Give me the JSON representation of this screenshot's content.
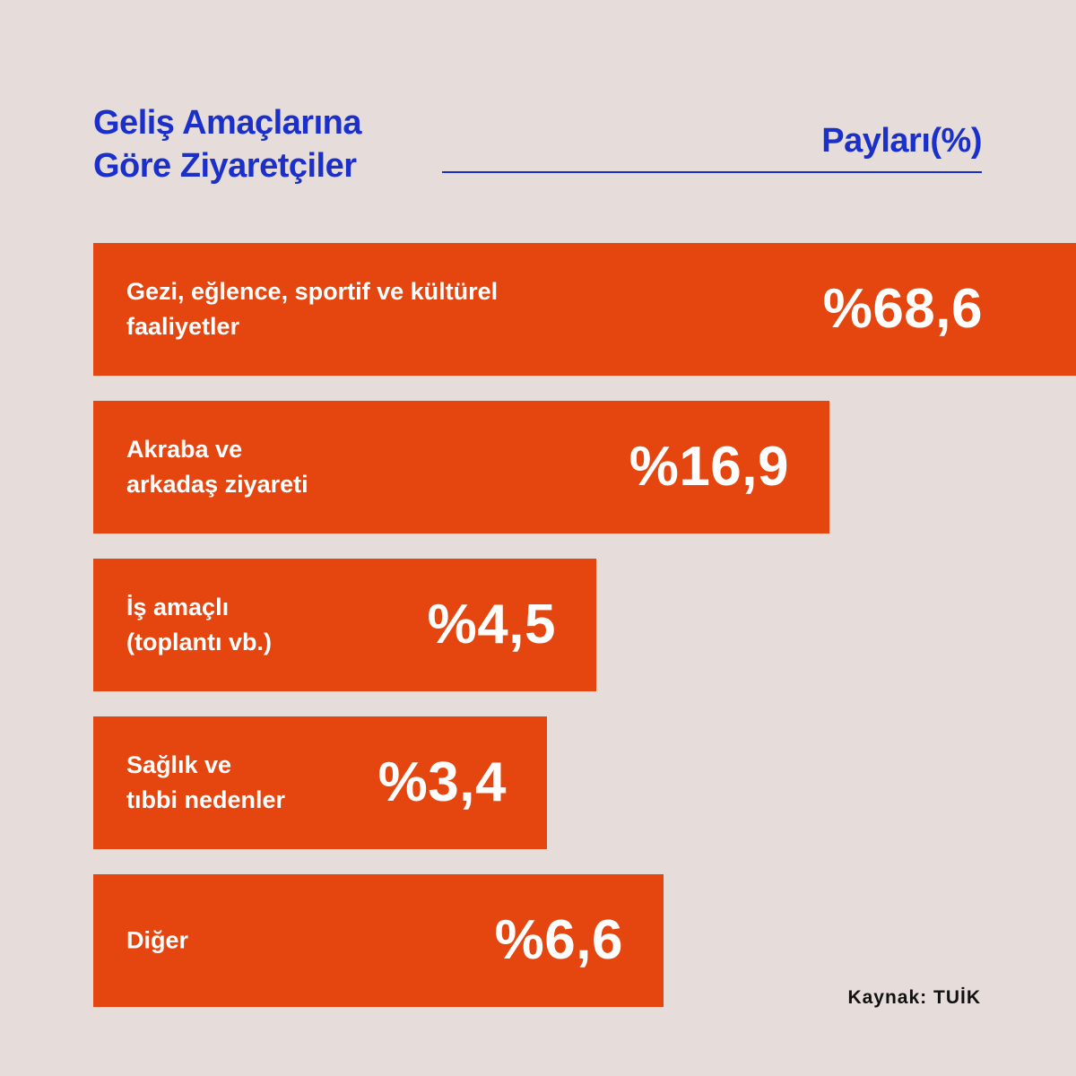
{
  "colors": {
    "background": "#e6dcda",
    "accent_blue": "#1b2fc9",
    "bar": "#e5460f",
    "bar_text": "#ffffff"
  },
  "chart_data": {
    "type": "bar",
    "orientation": "horizontal",
    "title": [
      "Geliş Amaçlarına",
      "Göre Ziyaretçiler"
    ],
    "unit_label": "Payları(%)",
    "categories": [
      [
        "Gezi, eğlence, sportif ve kültürel",
        "faaliyetler"
      ],
      [
        "Akraba ve",
        "arkadaş ziyareti"
      ],
      [
        "İş amaçlı",
        "(toplantı vb.)"
      ],
      [
        "Sağlık ve",
        "tıbbi nedenler"
      ],
      [
        "Diğer"
      ]
    ],
    "values": [
      68.6,
      16.9,
      4.5,
      3.4,
      6.6
    ],
    "value_labels": [
      "%68,6",
      "%16,9",
      "%4,5",
      "%3,4",
      "%6,6"
    ]
  },
  "source": {
    "prefix": "Kaynak: ",
    "name": "TUİK"
  }
}
